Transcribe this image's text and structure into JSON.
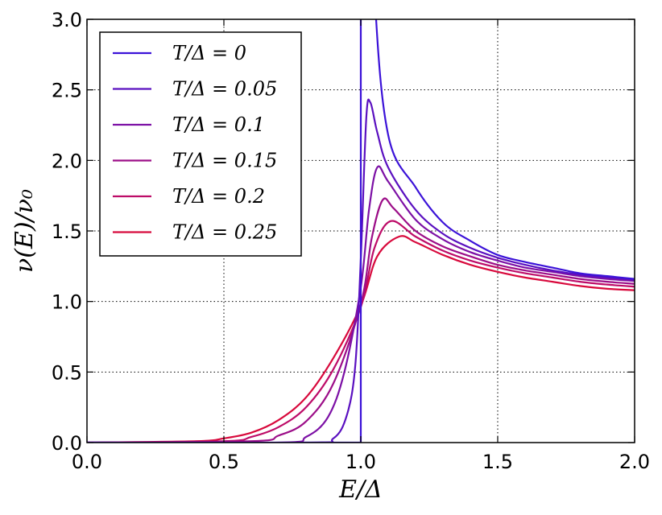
{
  "chart_data": {
    "type": "line",
    "title": "",
    "xlabel": "E/Δ",
    "ylabel": "ν(E)/ν₀",
    "xlim": [
      0.0,
      2.0
    ],
    "ylim": [
      0.0,
      3.0
    ],
    "xticks": [
      "0.0",
      "0.5",
      "1.0",
      "1.5",
      "2.0"
    ],
    "yticks": [
      "0.0",
      "0.5",
      "1.0",
      "1.5",
      "2.0",
      "2.5",
      "3.0"
    ],
    "grid": true,
    "legend_position": "top-left",
    "series": [
      {
        "name": "T/Δ = 0",
        "T": 0.0,
        "color": "#3b12d8",
        "points": [
          [
            0.0,
            0
          ],
          [
            0.999,
            0
          ],
          [
            1.0,
            0
          ],
          [
            1.0,
            3.0
          ],
          [
            1.02,
            5.0
          ],
          [
            1.05,
            3.2
          ],
          [
            1.1,
            2.18
          ],
          [
            1.2,
            1.81
          ],
          [
            1.3,
            1.56
          ],
          [
            1.4,
            1.43
          ],
          [
            1.5,
            1.33
          ],
          [
            1.6,
            1.28
          ],
          [
            1.7,
            1.24
          ],
          [
            1.8,
            1.2
          ],
          [
            1.9,
            1.18
          ],
          [
            2.0,
            1.16
          ]
        ]
      },
      {
        "name": "T/Δ = 0.05",
        "T": 0.05,
        "color": "#5a10c0",
        "points": [
          [
            0.0,
            0
          ],
          [
            0.8,
            0.0
          ],
          [
            0.9,
            0.03
          ],
          [
            0.95,
            0.2
          ],
          [
            0.98,
            0.55
          ],
          [
            1.0,
            1.3
          ],
          [
            1.02,
            2.3
          ],
          [
            1.035,
            2.41
          ],
          [
            1.06,
            2.2
          ],
          [
            1.1,
            1.95
          ],
          [
            1.2,
            1.65
          ],
          [
            1.3,
            1.48
          ],
          [
            1.4,
            1.38
          ],
          [
            1.5,
            1.31
          ],
          [
            1.6,
            1.26
          ],
          [
            1.7,
            1.22
          ],
          [
            1.8,
            1.19
          ],
          [
            1.9,
            1.17
          ],
          [
            2.0,
            1.155
          ]
        ]
      },
      {
        "name": "T/Δ = 0.1",
        "T": 0.1,
        "color": "#7c10a5",
        "points": [
          [
            0.0,
            0
          ],
          [
            0.7,
            0.0
          ],
          [
            0.8,
            0.04
          ],
          [
            0.88,
            0.18
          ],
          [
            0.94,
            0.5
          ],
          [
            1.0,
            1.1
          ],
          [
            1.03,
            1.65
          ],
          [
            1.06,
            1.95
          ],
          [
            1.1,
            1.85
          ],
          [
            1.2,
            1.58
          ],
          [
            1.3,
            1.44
          ],
          [
            1.4,
            1.35
          ],
          [
            1.5,
            1.29
          ],
          [
            1.6,
            1.24
          ],
          [
            1.7,
            1.21
          ],
          [
            1.8,
            1.18
          ],
          [
            1.9,
            1.16
          ],
          [
            2.0,
            1.145
          ]
        ]
      },
      {
        "name": "T/Δ = 0.15",
        "T": 0.15,
        "color": "#9c0e88",
        "points": [
          [
            0.0,
            0
          ],
          [
            0.6,
            0.01
          ],
          [
            0.7,
            0.05
          ],
          [
            0.8,
            0.15
          ],
          [
            0.9,
            0.42
          ],
          [
            1.0,
            0.98
          ],
          [
            1.04,
            1.45
          ],
          [
            1.08,
            1.72
          ],
          [
            1.12,
            1.66
          ],
          [
            1.2,
            1.5
          ],
          [
            1.3,
            1.39
          ],
          [
            1.4,
            1.32
          ],
          [
            1.5,
            1.26
          ],
          [
            1.6,
            1.22
          ],
          [
            1.7,
            1.19
          ],
          [
            1.8,
            1.16
          ],
          [
            1.9,
            1.14
          ],
          [
            2.0,
            1.125
          ]
        ]
      },
      {
        "name": "T/Δ = 0.2",
        "T": 0.2,
        "color": "#bd0c68",
        "points": [
          [
            0.0,
            0
          ],
          [
            0.5,
            0.01
          ],
          [
            0.6,
            0.04
          ],
          [
            0.7,
            0.11
          ],
          [
            0.8,
            0.25
          ],
          [
            0.9,
            0.52
          ],
          [
            1.0,
            0.96
          ],
          [
            1.05,
            1.38
          ],
          [
            1.11,
            1.57
          ],
          [
            1.2,
            1.46
          ],
          [
            1.3,
            1.36
          ],
          [
            1.4,
            1.29
          ],
          [
            1.5,
            1.24
          ],
          [
            1.6,
            1.2
          ],
          [
            1.7,
            1.17
          ],
          [
            1.8,
            1.14
          ],
          [
            1.9,
            1.12
          ],
          [
            2.0,
            1.105
          ]
        ]
      },
      {
        "name": "T/Δ = 0.25",
        "T": 0.25,
        "color": "#d8093c",
        "points": [
          [
            0.0,
            0
          ],
          [
            0.4,
            0.01
          ],
          [
            0.5,
            0.03
          ],
          [
            0.6,
            0.07
          ],
          [
            0.7,
            0.16
          ],
          [
            0.8,
            0.32
          ],
          [
            0.9,
            0.6
          ],
          [
            1.0,
            0.97
          ],
          [
            1.06,
            1.32
          ],
          [
            1.14,
            1.46
          ],
          [
            1.2,
            1.42
          ],
          [
            1.3,
            1.33
          ],
          [
            1.4,
            1.26
          ],
          [
            1.5,
            1.21
          ],
          [
            1.6,
            1.17
          ],
          [
            1.7,
            1.14
          ],
          [
            1.8,
            1.11
          ],
          [
            1.9,
            1.09
          ],
          [
            2.0,
            1.08
          ]
        ]
      }
    ]
  }
}
